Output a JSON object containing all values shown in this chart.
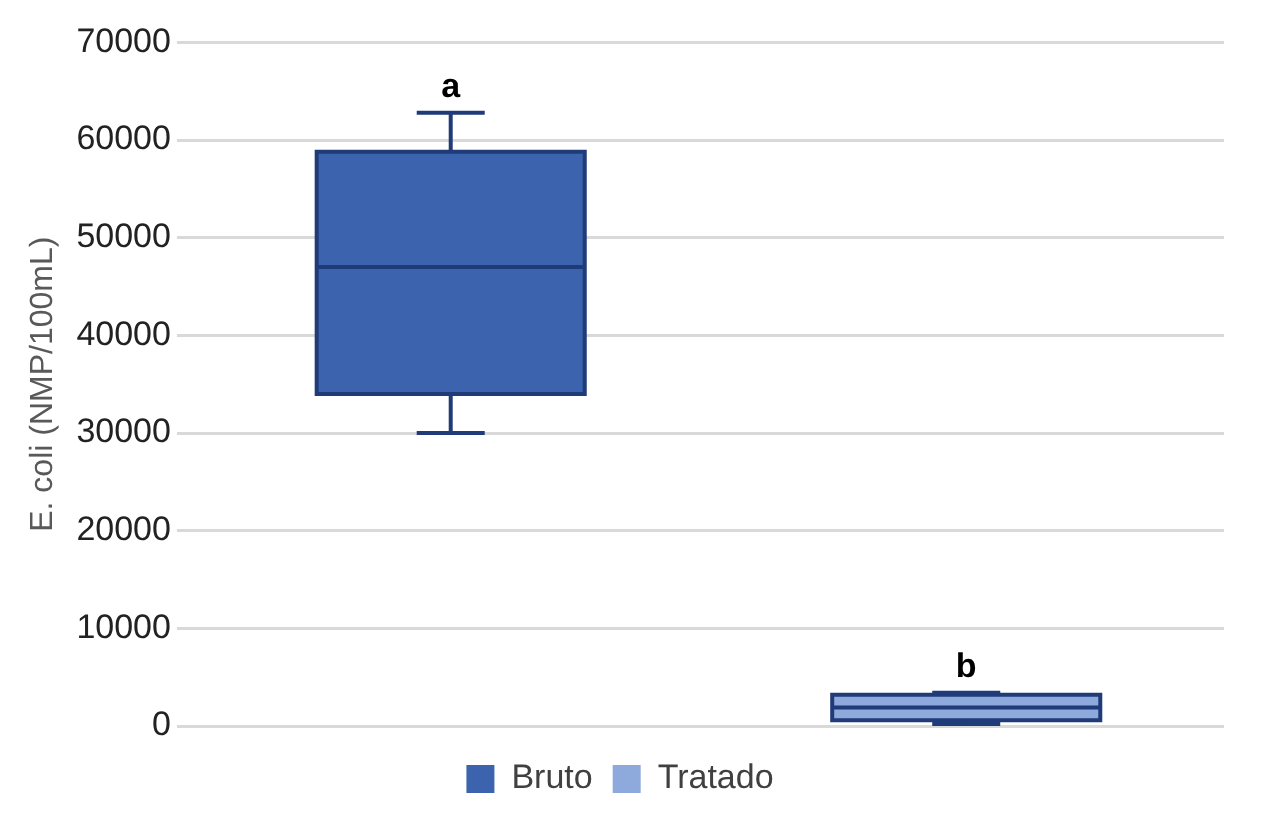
{
  "chart_data": {
    "type": "box",
    "ylabel": "E. coli (NMP/100mL)",
    "categories": [
      null,
      null
    ],
    "series": [
      {
        "name": "Bruto",
        "color": "#3c63ad",
        "boxes": [
          {
            "low": 30000,
            "q1": 34000,
            "median": 47000,
            "q3": 58800,
            "high": 62800
          },
          null
        ]
      },
      {
        "name": "Tratado",
        "color": "#8ea9db",
        "boxes": [
          null,
          {
            "low": 200,
            "q1": 600,
            "median": 1900,
            "q3": 3200,
            "high": 3400
          }
        ]
      }
    ],
    "annotations": [
      "a",
      "b"
    ],
    "ylim": [
      0,
      70000
    ],
    "yticks": [
      0,
      10000,
      20000,
      30000,
      40000,
      50000,
      60000,
      70000
    ],
    "grid": "y",
    "legend": "bottom"
  }
}
